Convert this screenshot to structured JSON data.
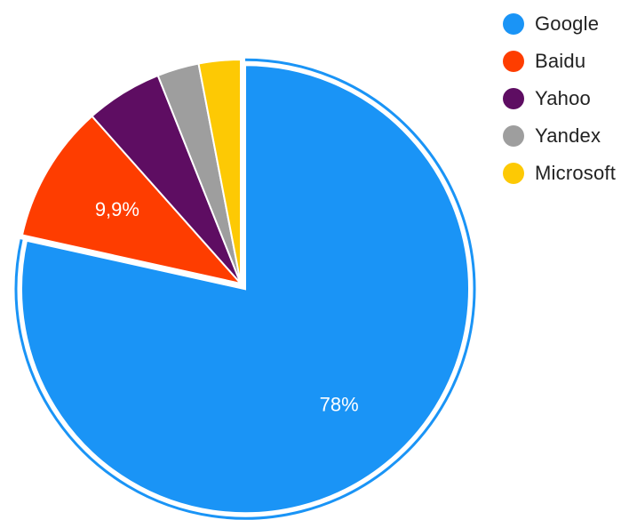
{
  "chart_data": {
    "type": "pie",
    "title": "",
    "exploded_slice": "Google",
    "slices": [
      {
        "name": "Google",
        "value": 78,
        "label": "78%",
        "color": "#1a94f6"
      },
      {
        "name": "Baidu",
        "value": 9.9,
        "label": "9,9%",
        "color": "#fe3d00"
      },
      {
        "name": "Yahoo",
        "value": 5.5,
        "label": "",
        "color": "#5e0d62"
      },
      {
        "name": "Yandex",
        "value": 3.0,
        "label": "",
        "color": "#9e9e9e"
      },
      {
        "name": "Microsoft",
        "value": 3.0,
        "label": "",
        "color": "#fdc904"
      }
    ],
    "legend": {
      "placement": "top-right",
      "entries": [
        "Google",
        "Baidu",
        "Yahoo",
        "Yandex",
        "Microsoft"
      ]
    }
  }
}
